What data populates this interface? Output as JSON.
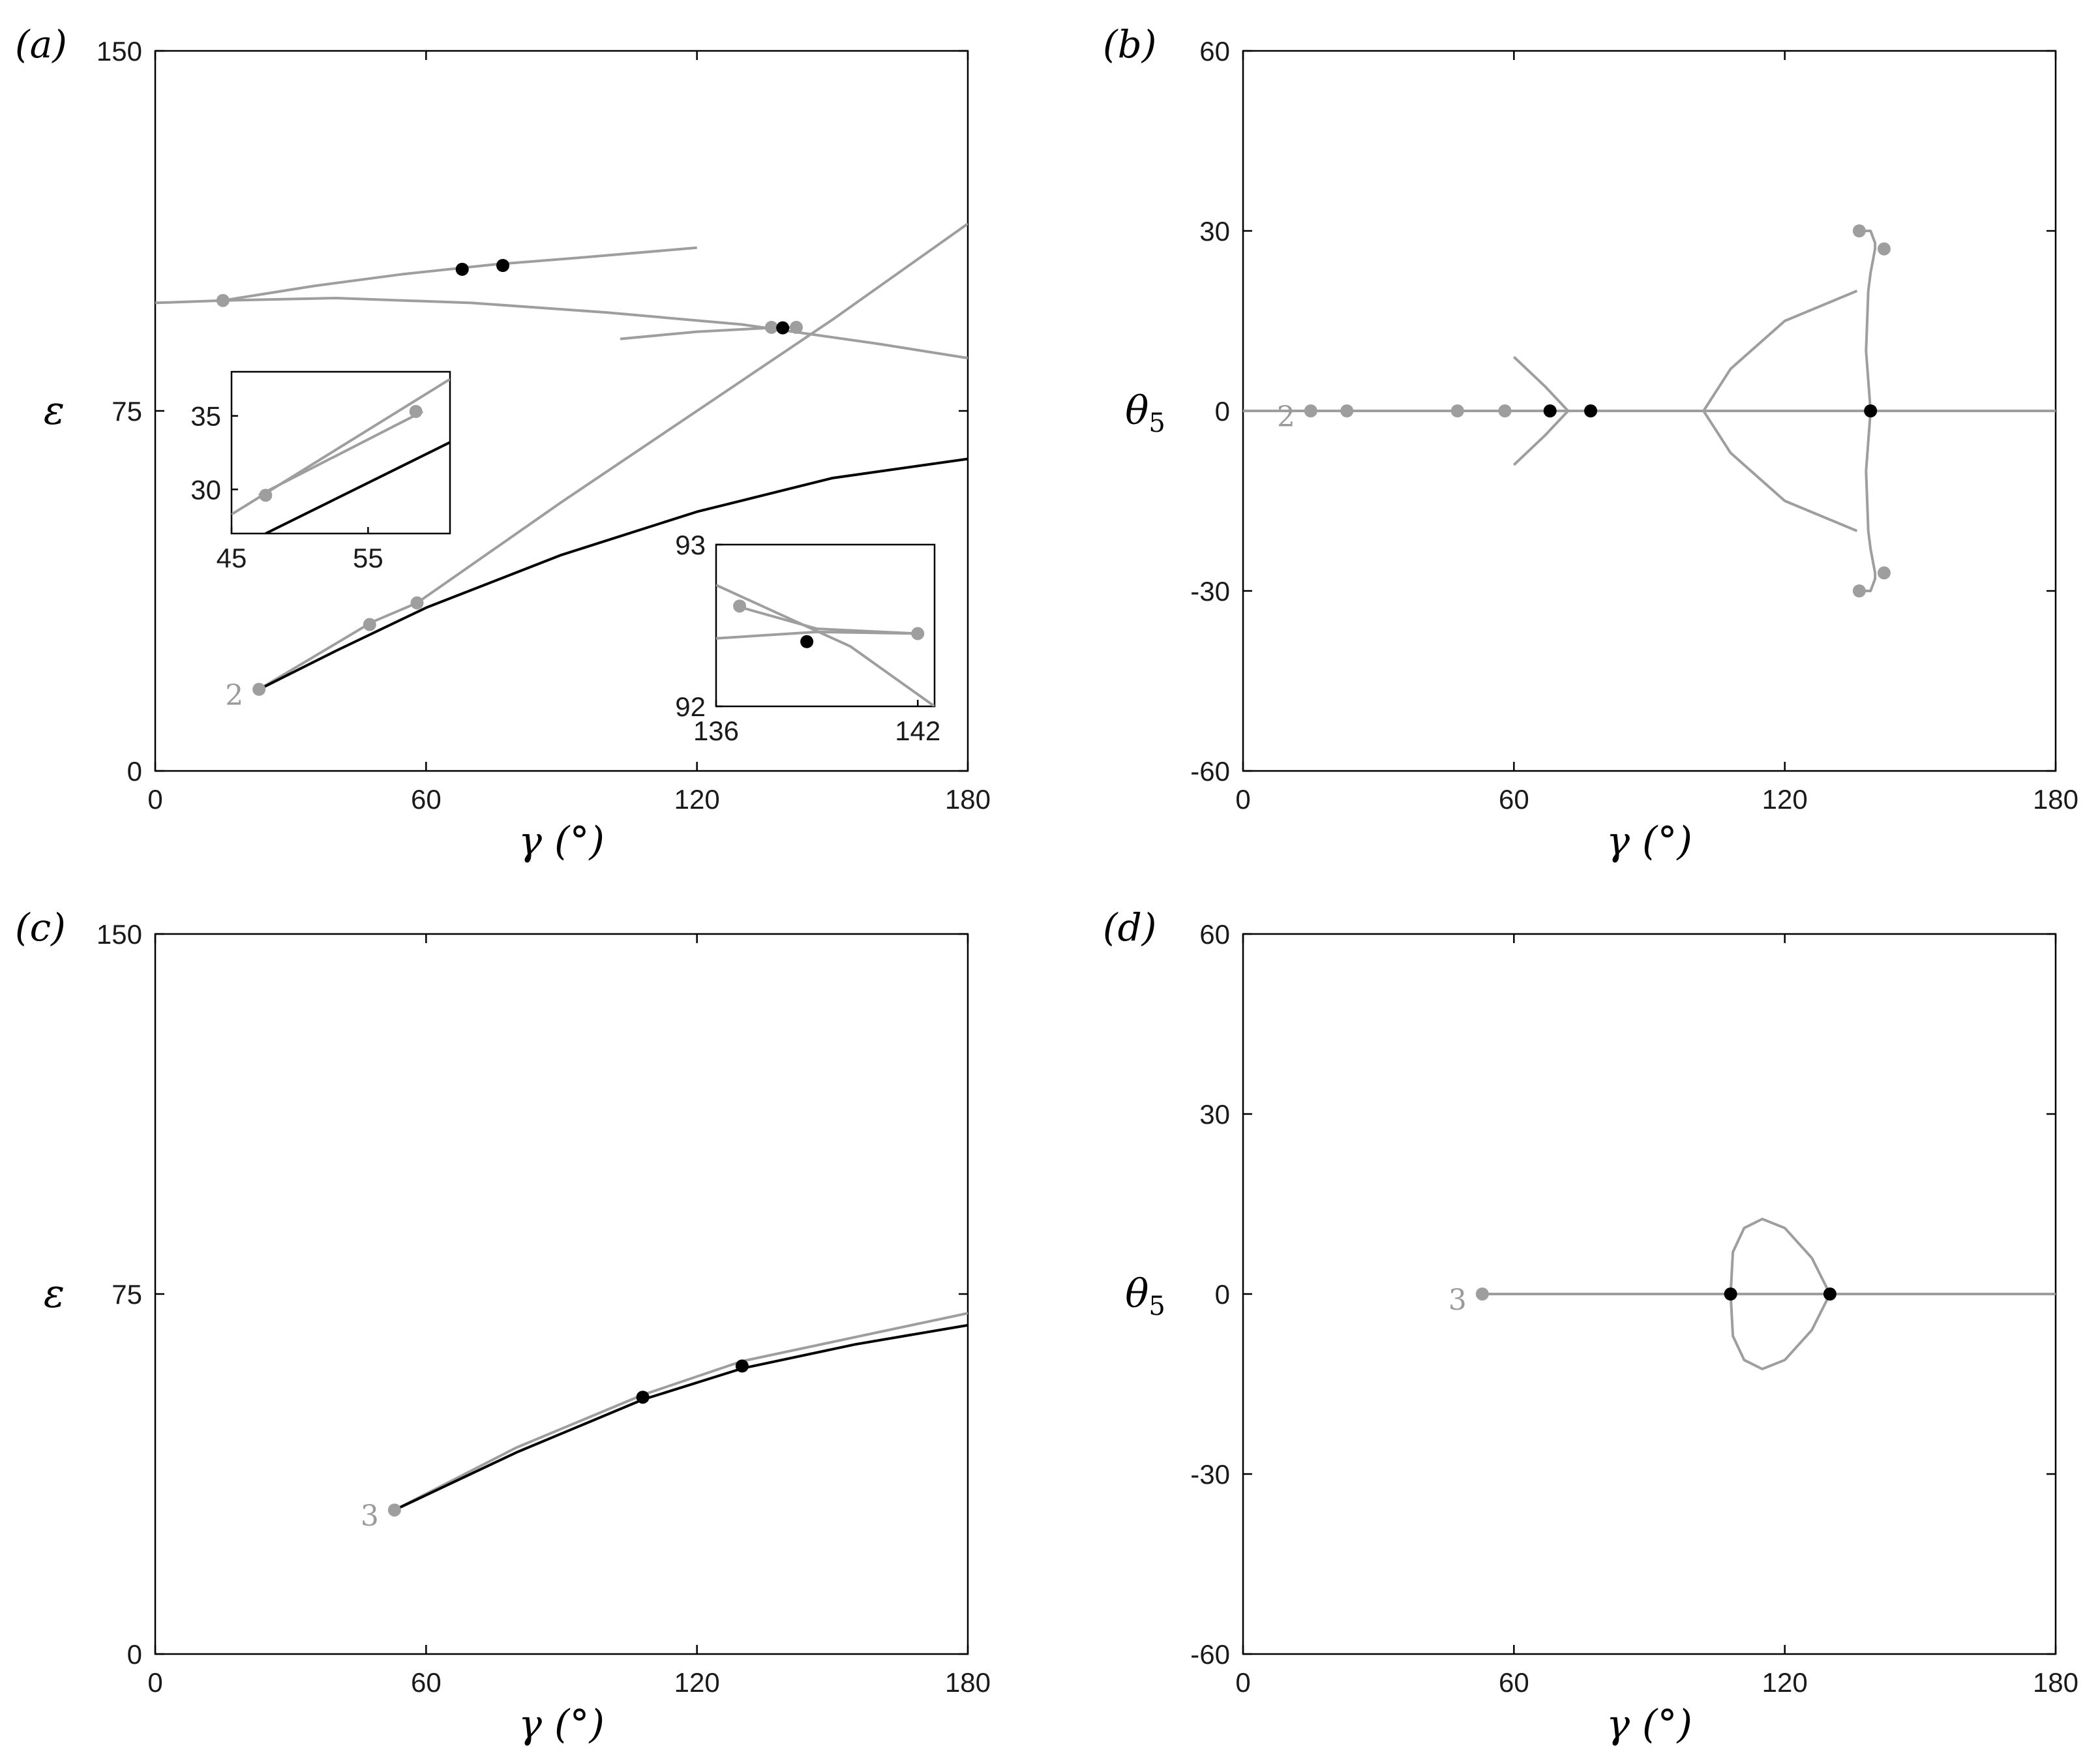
{
  "chart_data": [
    {
      "panel": "a",
      "type": "line",
      "panel_label": "(a)",
      "xlabel": "γ (°)",
      "ylabel": "ε",
      "xlim": [
        0,
        180
      ],
      "ylim": [
        0,
        150
      ],
      "xticks": [
        "0",
        "60",
        "120",
        "180"
      ],
      "yticks": [
        "0",
        "75",
        "150"
      ],
      "series": [
        {
          "color": "#9e9e9e",
          "points": [
            [
              15,
              98
            ],
            [
              35,
              101
            ],
            [
              55,
              103.5
            ],
            [
              75,
              105.5
            ],
            [
              95,
              107
            ],
            [
              120,
              109
            ]
          ]
        },
        {
          "color": "#9e9e9e",
          "points": [
            [
              0,
              97.5
            ],
            [
              15,
              98
            ],
            [
              40,
              98.5
            ],
            [
              70,
              97.5
            ],
            [
              100,
              95.5
            ],
            [
              130,
              93
            ],
            [
              160,
              89
            ],
            [
              180,
              86
            ]
          ]
        },
        {
          "color": "#9e9e9e",
          "points": [
            [
              103,
              90
            ],
            [
              120,
              91.5
            ],
            [
              136,
              92.3
            ],
            [
              142,
              92.4
            ]
          ]
        },
        {
          "color": "#9e9e9e",
          "points": [
            [
              23,
              17
            ],
            [
              48,
              31
            ],
            [
              58,
              35
            ],
            [
              90,
              56
            ],
            [
              120,
              75
            ],
            [
              150,
              94
            ],
            [
              180,
              114
            ]
          ]
        },
        {
          "color": "#000000",
          "points": [
            [
              23,
              17
            ],
            [
              40,
              25
            ],
            [
              60,
              34
            ],
            [
              90,
              45
            ],
            [
              120,
              54
            ],
            [
              150,
              61
            ],
            [
              180,
              65
            ]
          ]
        }
      ],
      "markers": [
        {
          "x": 15,
          "y": 98,
          "color": "#9e9e9e"
        },
        {
          "x": 68,
          "y": 104.5,
          "color": "#000000"
        },
        {
          "x": 77,
          "y": 105.3,
          "color": "#000000"
        },
        {
          "x": 136.5,
          "y": 92.4,
          "color": "#9e9e9e"
        },
        {
          "x": 139,
          "y": 92.3,
          "color": "#000000"
        },
        {
          "x": 142,
          "y": 92.4,
          "color": "#9e9e9e"
        },
        {
          "x": 23,
          "y": 17,
          "color": "#9e9e9e"
        },
        {
          "x": 47.5,
          "y": 30.5,
          "color": "#9e9e9e"
        },
        {
          "x": 58,
          "y": 35,
          "color": "#9e9e9e"
        }
      ],
      "labels": [
        {
          "text": "2",
          "x": 23,
          "y": 17,
          "color": "#9e9e9e"
        }
      ],
      "insets": [
        {
          "xlim": [
            45,
            61
          ],
          "ylim": [
            27,
            38
          ],
          "xticks": [
            45,
            55
          ],
          "yticks": [
            30,
            35
          ],
          "series": [
            {
              "color": "#9e9e9e",
              "points": [
                [
                  45,
                  28.3
                ],
                [
                  61,
                  37.5
                ]
              ]
            },
            {
              "color": "#9e9e9e",
              "points": [
                [
                  47,
                  29.6
                ],
                [
                  59,
                  35.3
                ]
              ]
            },
            {
              "color": "#000000",
              "points": [
                [
                  47.5,
                  27
                ],
                [
                  61,
                  33.2
                ]
              ]
            }
          ],
          "markers": [
            {
              "x": 47.5,
              "y": 29.6,
              "color": "#9e9e9e"
            },
            {
              "x": 58.5,
              "y": 35.3,
              "color": "#9e9e9e"
            }
          ]
        },
        {
          "xlim": [
            136,
            142.5
          ],
          "ylim": [
            92,
            93
          ],
          "xticks": [
            136,
            142
          ],
          "yticks": [
            92,
            93
          ],
          "series": [
            {
              "color": "#9e9e9e",
              "points": [
                [
                  136,
                  92.75
                ],
                [
                  140,
                  92.37
                ],
                [
                  142.5,
                  92.0
                ]
              ]
            },
            {
              "color": "#9e9e9e",
              "points": [
                [
                  136.6,
                  92.62
                ],
                [
                  139,
                  92.48
                ],
                [
                  142,
                  92.45
                ]
              ]
            },
            {
              "color": "#9e9e9e",
              "points": [
                [
                  136,
                  92.42
                ],
                [
                  139,
                  92.46
                ],
                [
                  142,
                  92.45
                ]
              ]
            }
          ],
          "markers": [
            {
              "x": 136.7,
              "y": 92.62,
              "color": "#9e9e9e"
            },
            {
              "x": 138.7,
              "y": 92.4,
              "color": "#000000"
            },
            {
              "x": 142,
              "y": 92.45,
              "color": "#9e9e9e"
            }
          ]
        }
      ]
    },
    {
      "panel": "b",
      "type": "line",
      "panel_label": "(b)",
      "xlabel": "γ (°)",
      "ylabel": "θ5",
      "xlim": [
        0,
        180
      ],
      "ylim": [
        -60,
        60
      ],
      "xticks": [
        "0",
        "60",
        "120",
        "180"
      ],
      "yticks": [
        "-60",
        "-30",
        "0",
        "30",
        "60"
      ],
      "series": [
        {
          "color": "#9e9e9e",
          "points": [
            [
              0,
              0
            ],
            [
              180,
              0
            ]
          ]
        },
        {
          "color": "#9e9e9e",
          "points": [
            [
              60,
              9
            ],
            [
              67,
              4
            ],
            [
              72,
              0
            ],
            [
              67,
              -4
            ],
            [
              60,
              -9
            ]
          ]
        },
        {
          "color": "#9e9e9e",
          "points": [
            [
              136,
              20
            ],
            [
              120,
              15
            ],
            [
              108,
              7
            ],
            [
              102,
              0
            ],
            [
              108,
              -7
            ],
            [
              120,
              -15
            ],
            [
              136,
              -20
            ]
          ]
        },
        {
          "color": "#9e9e9e",
          "points": [
            [
              137,
              30
            ],
            [
              139,
              30
            ],
            [
              140,
              28
            ],
            [
              140,
              27
            ],
            [
              139,
              23
            ],
            [
              138.5,
              20
            ],
            [
              138,
              10
            ],
            [
              139,
              0
            ],
            [
              138,
              -10
            ],
            [
              138.5,
              -20
            ],
            [
              139,
              -23
            ],
            [
              140,
              -27
            ],
            [
              140,
              -28
            ],
            [
              139,
              -30
            ],
            [
              137,
              -30
            ]
          ]
        }
      ],
      "markers": [
        {
          "x": 15,
          "y": 0,
          "color": "#9e9e9e"
        },
        {
          "x": 23,
          "y": 0,
          "color": "#9e9e9e"
        },
        {
          "x": 47.5,
          "y": 0,
          "color": "#9e9e9e"
        },
        {
          "x": 58,
          "y": 0,
          "color": "#9e9e9e"
        },
        {
          "x": 68,
          "y": 0,
          "color": "#000000"
        },
        {
          "x": 77,
          "y": 0,
          "color": "#000000"
        },
        {
          "x": 139,
          "y": 0,
          "color": "#000000"
        },
        {
          "x": 136.5,
          "y": 30,
          "color": "#9e9e9e"
        },
        {
          "x": 142,
          "y": 27,
          "color": "#9e9e9e"
        },
        {
          "x": 136.5,
          "y": -30,
          "color": "#9e9e9e"
        },
        {
          "x": 142,
          "y": -27,
          "color": "#9e9e9e"
        }
      ],
      "labels": [
        {
          "text": "2",
          "x": 15,
          "y": 0,
          "color": "#9e9e9e"
        }
      ]
    },
    {
      "panel": "c",
      "type": "line",
      "panel_label": "(c)",
      "xlabel": "γ (°)",
      "ylabel": "ε",
      "xlim": [
        0,
        180
      ],
      "ylim": [
        0,
        150
      ],
      "xticks": [
        "0",
        "60",
        "120",
        "180"
      ],
      "yticks": [
        "0",
        "75",
        "150"
      ],
      "series": [
        {
          "color": "#9e9e9e",
          "points": [
            [
              53,
              30
            ],
            [
              80,
              43
            ],
            [
              108,
              54
            ],
            [
              130,
              61
            ],
            [
              155,
              66
            ],
            [
              180,
              71
            ]
          ]
        },
        {
          "color": "#000000",
          "points": [
            [
              53,
              30
            ],
            [
              80,
              42
            ],
            [
              108,
              53
            ],
            [
              130,
              59.5
            ],
            [
              155,
              64.5
            ],
            [
              180,
              68.5
            ]
          ]
        }
      ],
      "markers": [
        {
          "x": 53,
          "y": 30,
          "color": "#9e9e9e"
        },
        {
          "x": 108,
          "y": 53.5,
          "color": "#000000"
        },
        {
          "x": 130,
          "y": 60,
          "color": "#000000"
        }
      ],
      "labels": [
        {
          "text": "3",
          "x": 53,
          "y": 30,
          "color": "#9e9e9e"
        }
      ]
    },
    {
      "panel": "d",
      "type": "line",
      "panel_label": "(d)",
      "xlabel": "γ (°)",
      "ylabel": "θ5",
      "xlim": [
        0,
        180
      ],
      "ylim": [
        -60,
        60
      ],
      "xticks": [
        "0",
        "60",
        "120",
        "180"
      ],
      "yticks": [
        "-60",
        "-30",
        "0",
        "30",
        "60"
      ],
      "series": [
        {
          "color": "#9e9e9e",
          "points": [
            [
              53,
              0
            ],
            [
              180,
              0
            ]
          ]
        },
        {
          "color": "#9e9e9e",
          "points": [
            [
              108,
              0
            ],
            [
              108.5,
              7
            ],
            [
              111,
              11
            ],
            [
              115,
              12.5
            ],
            [
              120,
              11
            ],
            [
              126,
              6
            ],
            [
              130,
              0
            ],
            [
              126,
              -6
            ],
            [
              120,
              -11
            ],
            [
              115,
              -12.5
            ],
            [
              111,
              -11
            ],
            [
              108.5,
              -7
            ],
            [
              108,
              0
            ]
          ]
        }
      ],
      "markers": [
        {
          "x": 53,
          "y": 0,
          "color": "#9e9e9e"
        },
        {
          "x": 108,
          "y": 0,
          "color": "#000000"
        },
        {
          "x": 130,
          "y": 0,
          "color": "#000000"
        }
      ],
      "labels": [
        {
          "text": "3",
          "x": 53,
          "y": 0,
          "color": "#9e9e9e"
        }
      ]
    }
  ]
}
